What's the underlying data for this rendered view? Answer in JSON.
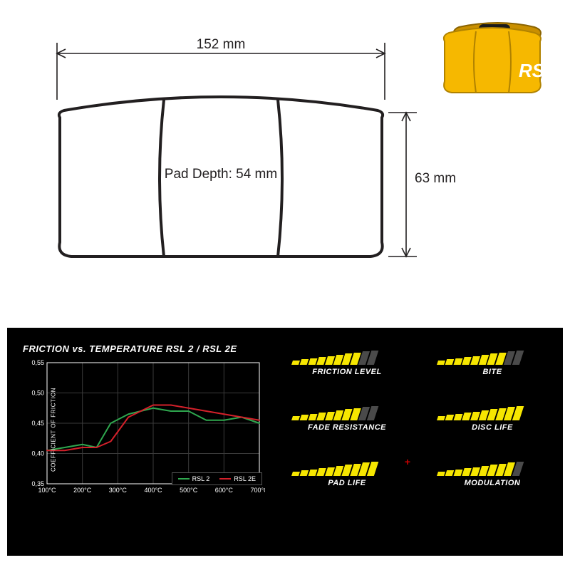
{
  "drawing": {
    "width_label": "152 mm",
    "height_label": "63 mm",
    "depth_label": "Pad Depth: 54 mm",
    "stroke": "#221f20",
    "dim_stroke": "#221f20",
    "fontsize": 19
  },
  "product": {
    "logo_text": "RSL",
    "pad_color": "#f6b800",
    "pad_dark": "#c98f00",
    "logo_color": "#ffffff"
  },
  "perf": {
    "title": "FRICTION vs. TEMPERATURE RSL 2 / RSL 2E",
    "ylabel": "COEFFICIENT OF FRICTION",
    "bg": "#000000",
    "text": "#ffffff",
    "chart": {
      "xlim": [
        100,
        700
      ],
      "ylim": [
        0.35,
        0.55
      ],
      "xticks": [
        100,
        200,
        300,
        400,
        500,
        600,
        700
      ],
      "xtick_labels": [
        "100°C",
        "200°C",
        "300°C",
        "400°C",
        "500°C",
        "600°C",
        "700°C"
      ],
      "yticks": [
        0.35,
        0.4,
        0.45,
        0.5,
        0.55
      ],
      "ytick_labels": [
        "0,35",
        "0,40",
        "0,45",
        "0,50",
        "0,55"
      ],
      "grid_color": "#3a3a3a",
      "axis_color": "#ffffff",
      "tick_fontsize": 9,
      "series": [
        {
          "name": "RSL 2",
          "color": "#2fa84f",
          "width": 2,
          "points": [
            [
              100,
              0.405
            ],
            [
              150,
              0.41
            ],
            [
              200,
              0.415
            ],
            [
              240,
              0.41
            ],
            [
              280,
              0.45
            ],
            [
              330,
              0.465
            ],
            [
              400,
              0.475
            ],
            [
              450,
              0.47
            ],
            [
              500,
              0.47
            ],
            [
              550,
              0.455
            ],
            [
              600,
              0.455
            ],
            [
              650,
              0.46
            ],
            [
              700,
              0.45
            ]
          ]
        },
        {
          "name": "RSL 2E",
          "color": "#d4202a",
          "width": 2,
          "points": [
            [
              100,
              0.405
            ],
            [
              150,
              0.405
            ],
            [
              200,
              0.41
            ],
            [
              240,
              0.41
            ],
            [
              280,
              0.42
            ],
            [
              330,
              0.46
            ],
            [
              400,
              0.48
            ],
            [
              450,
              0.48
            ],
            [
              500,
              0.475
            ],
            [
              550,
              0.47
            ],
            [
              600,
              0.465
            ],
            [
              650,
              0.46
            ],
            [
              700,
              0.455
            ]
          ]
        }
      ],
      "legend_labels": [
        "RSL 2",
        "RSL 2E"
      ]
    },
    "ratings": {
      "max_segments": 10,
      "seg_color_on": "#f6e600",
      "seg_color_off": "#4a4a4a",
      "items": [
        {
          "label": "FRICTION LEVEL",
          "value": 8,
          "plus": false
        },
        {
          "label": "BITE",
          "value": 8,
          "plus": false
        },
        {
          "label": "FADE RESISTANCE",
          "value": 8,
          "plus": false
        },
        {
          "label": "DISC LIFE",
          "value": 10,
          "plus": false
        },
        {
          "label": "PAD LIFE",
          "value": 10,
          "plus": true
        },
        {
          "label": "MODULATION",
          "value": 9,
          "plus": false
        }
      ]
    }
  }
}
